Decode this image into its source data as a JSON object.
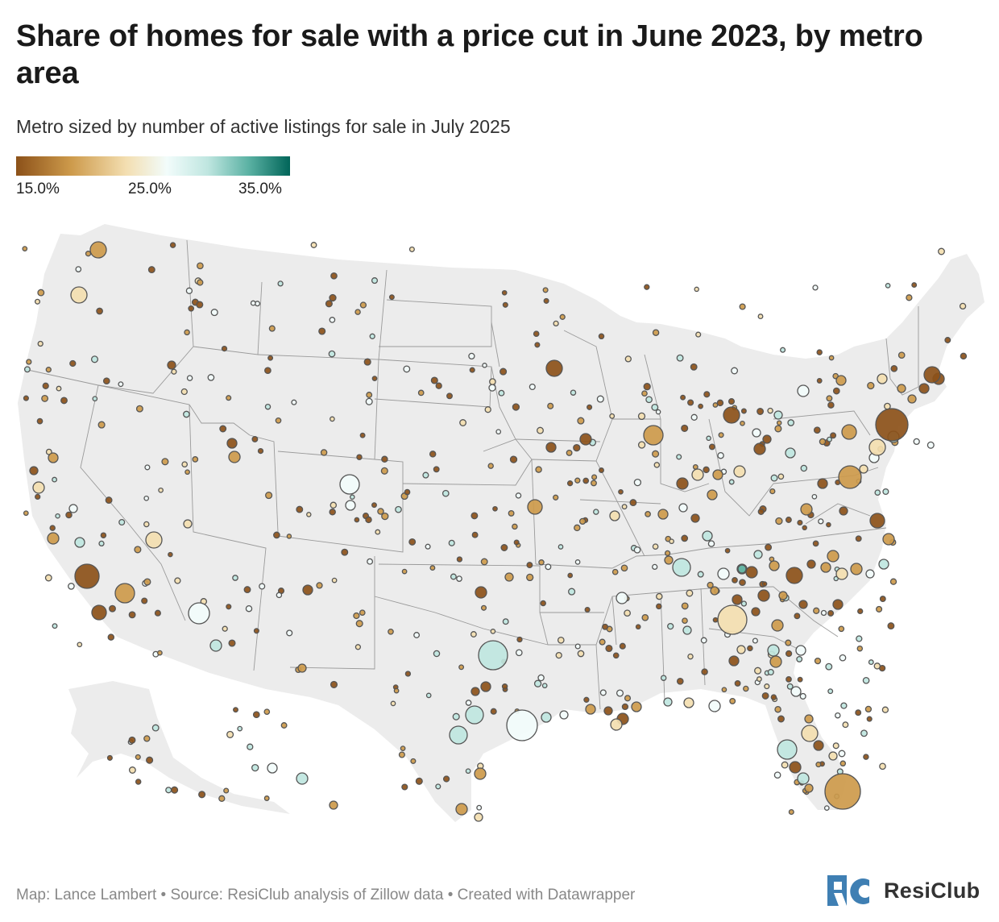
{
  "title": "Share of homes for sale with a price cut in June 2023, by metro area",
  "subtitle": "Metro sized by number of active listings for sale in July 2025",
  "legend": {
    "labels": [
      "15.0%",
      "25.0%",
      "35.0%"
    ],
    "colors": [
      "#8c5119",
      "#cd9a4b",
      "#f3deb0",
      "#f2fcfb",
      "#bfe6e0",
      "#5ab1a3",
      "#016559"
    ]
  },
  "footer": "Map: Lance Lambert • Source: ResiClub analysis of Zillow data • Created with Datawrapper",
  "logo": {
    "text": "ResiClub"
  }
}
